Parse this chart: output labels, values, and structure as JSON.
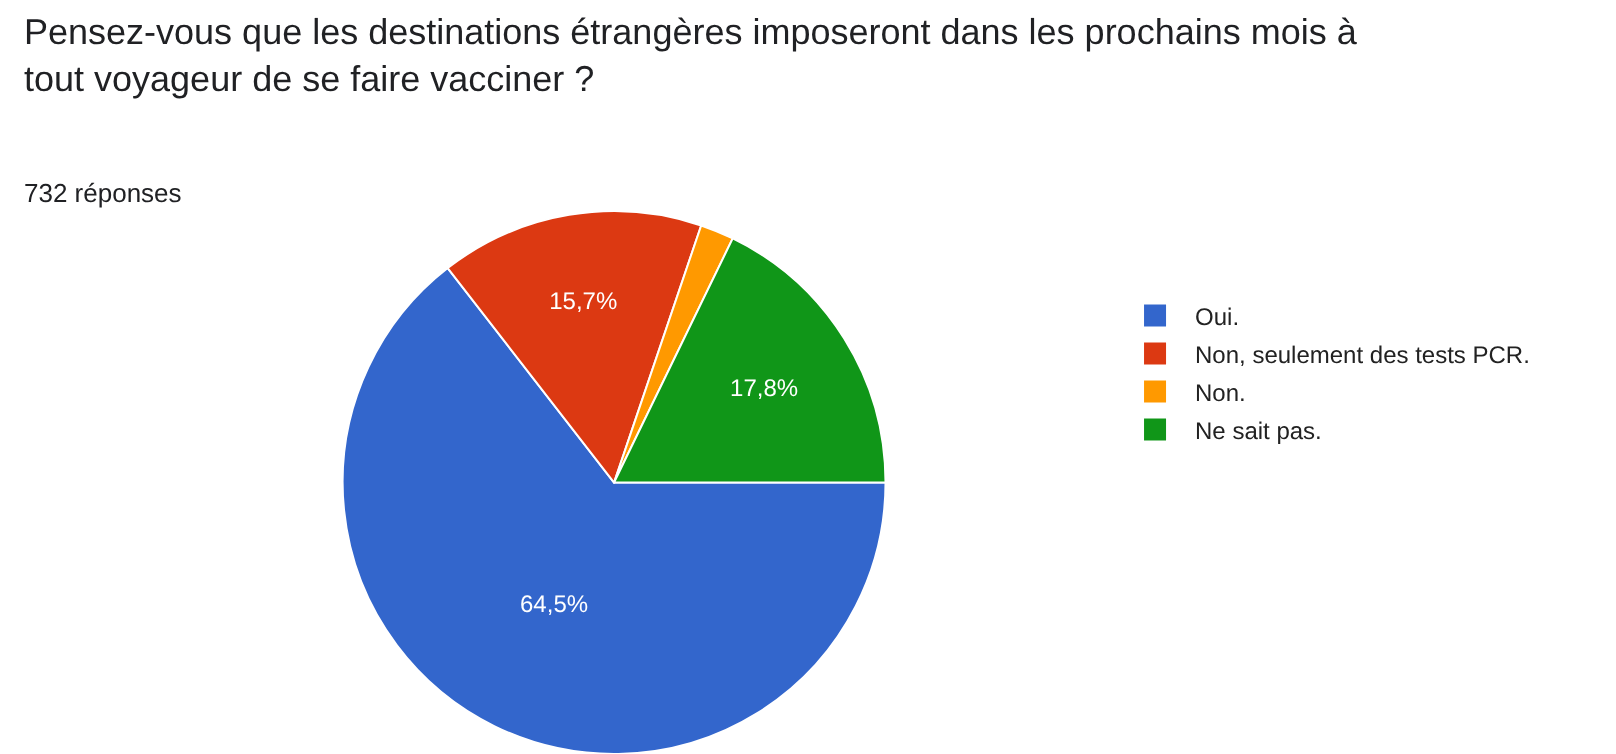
{
  "chart_data": {
    "type": "pie",
    "title": "Pensez-vous que les destinations étrangères imposeront dans les prochains mois à tout voyageur de se faire vacciner ?",
    "subtitle": "732 réponses",
    "categories": [
      "Oui.",
      "Non, seulement des tests PCR.",
      "Non.",
      "Ne sait pas."
    ],
    "values": [
      64.5,
      15.7,
      2.0,
      17.8
    ],
    "colors": [
      "#3366cc",
      "#dc3912",
      "#ff9900",
      "#109618"
    ],
    "value_labels": [
      "64,5%",
      "15,7%",
      null,
      "17,8%"
    ],
    "legend": "right"
  }
}
